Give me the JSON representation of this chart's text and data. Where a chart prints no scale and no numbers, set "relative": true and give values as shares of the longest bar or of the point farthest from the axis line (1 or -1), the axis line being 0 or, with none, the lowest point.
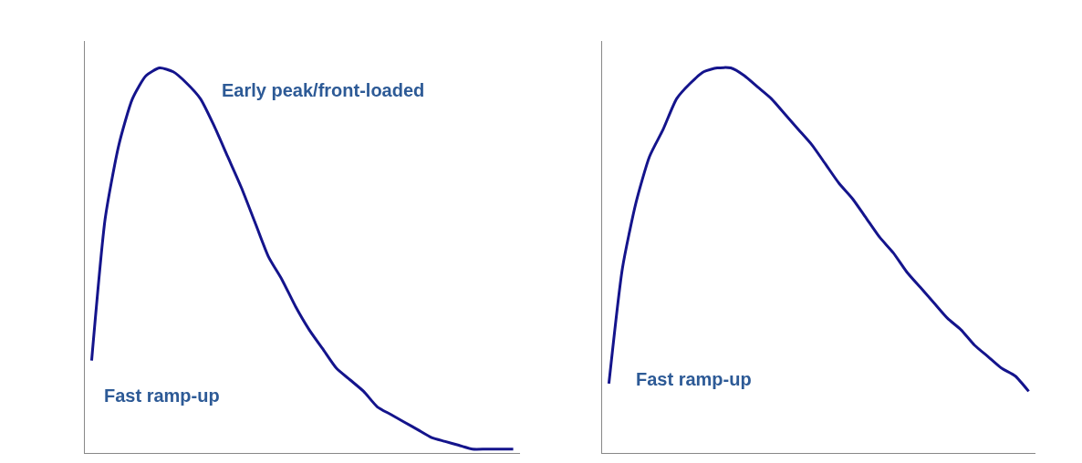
{
  "chart_data": [
    {
      "type": "line",
      "relative": true,
      "color": "#14148c",
      "categories": [
        null,
        null,
        null,
        null,
        null,
        null,
        null,
        null,
        null,
        null,
        null,
        null,
        null,
        null,
        null,
        null,
        null,
        null,
        null,
        null,
        null,
        null,
        null,
        null,
        null,
        null,
        null,
        null,
        null,
        null,
        null,
        null
      ],
      "values": [
        0.24,
        0.61,
        0.8,
        0.92,
        0.98,
        1.0,
        0.99,
        0.96,
        0.92,
        0.85,
        0.77,
        0.69,
        0.6,
        0.51,
        0.45,
        0.38,
        0.32,
        0.27,
        0.22,
        0.19,
        0.16,
        0.12,
        0.1,
        0.08,
        0.06,
        0.04,
        0.03,
        0.02,
        0.01,
        0.01,
        0.01,
        0.01
      ],
      "annotations": [
        "Early peak/front-loaded",
        "Fast ramp-up"
      ]
    },
    {
      "type": "line",
      "relative": true,
      "color": "#14148c",
      "categories": [
        null,
        null,
        null,
        null,
        null,
        null,
        null,
        null,
        null,
        null,
        null,
        null,
        null,
        null,
        null,
        null,
        null,
        null,
        null,
        null,
        null,
        null,
        null,
        null,
        null,
        null,
        null,
        null,
        null,
        null,
        null,
        null
      ],
      "values": [
        0.18,
        0.48,
        0.65,
        0.77,
        0.84,
        0.92,
        0.96,
        0.99,
        1.0,
        1.0,
        0.98,
        0.95,
        0.92,
        0.88,
        0.84,
        0.8,
        0.75,
        0.7,
        0.66,
        0.61,
        0.56,
        0.52,
        0.47,
        0.43,
        0.39,
        0.35,
        0.32,
        0.28,
        0.25,
        0.22,
        0.2,
        0.16
      ],
      "annotations": [
        "Fast ramp-up"
      ]
    }
  ]
}
